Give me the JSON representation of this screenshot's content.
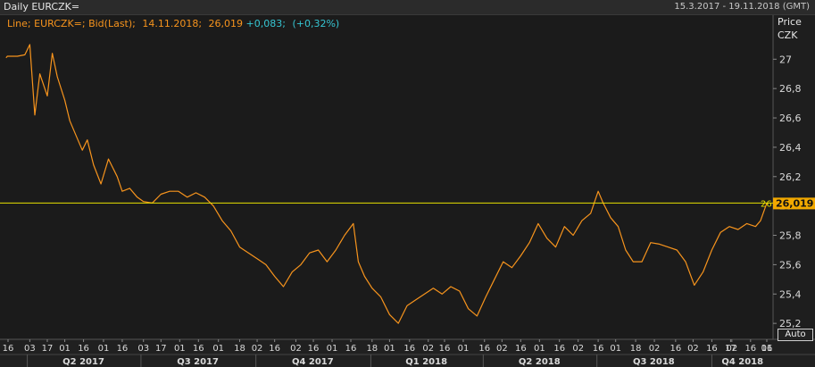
{
  "header": {
    "title": "Daily EURCZK=",
    "date_range": "15.3.2017 - 19.11.2018 (GMT)"
  },
  "legend": {
    "prefix": "Line; EURCZK=; Bid(Last);",
    "date": "14.11.2018;",
    "last_value": "26,019",
    "change": "+0,083;",
    "change_pct": "(+0,32%)"
  },
  "axis": {
    "price_label": "Price",
    "currency_label": "CZK",
    "auto_label": "Auto",
    "last_price_tag": "26,019",
    "line_end_label": "26"
  },
  "colors": {
    "background": "#1b1b1b",
    "series": "#f7941d",
    "reference_line": "#e8e000",
    "legend_change": "#36c6d3",
    "price_tag": "#f2a900"
  },
  "chart_data": {
    "type": "line",
    "series": [
      {
        "name": "EURCZK=",
        "x": [
          "2017-03-15",
          "2017-03-16",
          "2017-03-24",
          "2017-03-30",
          "2017-04-03",
          "2017-04-07",
          "2017-04-11",
          "2017-04-17",
          "2017-04-21",
          "2017-04-25",
          "2017-05-01",
          "2017-05-05",
          "2017-05-10",
          "2017-05-15",
          "2017-05-19",
          "2017-05-24",
          "2017-05-30",
          "2017-06-05",
          "2017-06-12",
          "2017-06-16",
          "2017-06-22",
          "2017-06-28",
          "2017-07-03",
          "2017-07-10",
          "2017-07-17",
          "2017-07-24",
          "2017-07-31",
          "2017-08-07",
          "2017-08-14",
          "2017-08-21",
          "2017-08-28",
          "2017-09-04",
          "2017-09-11",
          "2017-09-18",
          "2017-09-25",
          "2017-10-02",
          "2017-10-09",
          "2017-10-16",
          "2017-10-23",
          "2017-10-30",
          "2017-11-06",
          "2017-11-13",
          "2017-11-20",
          "2017-11-27",
          "2017-12-04",
          "2017-12-11",
          "2017-12-18",
          "2017-12-22",
          "2017-12-27",
          "2018-01-02",
          "2018-01-09",
          "2018-01-16",
          "2018-01-23",
          "2018-01-30",
          "2018-02-06",
          "2018-02-13",
          "2018-02-20",
          "2018-02-27",
          "2018-03-06",
          "2018-03-13",
          "2018-03-20",
          "2018-03-27",
          "2018-04-03",
          "2018-04-10",
          "2018-04-17",
          "2018-04-24",
          "2018-05-01",
          "2018-05-08",
          "2018-05-15",
          "2018-05-22",
          "2018-05-29",
          "2018-06-05",
          "2018-06-12",
          "2018-06-19",
          "2018-06-26",
          "2018-07-02",
          "2018-07-06",
          "2018-07-12",
          "2018-07-18",
          "2018-07-24",
          "2018-07-30",
          "2018-08-06",
          "2018-08-13",
          "2018-08-20",
          "2018-08-27",
          "2018-09-03",
          "2018-09-10",
          "2018-09-17",
          "2018-09-24",
          "2018-10-01",
          "2018-10-08",
          "2018-10-15",
          "2018-10-22",
          "2018-10-29",
          "2018-11-05",
          "2018-11-09",
          "2018-11-14"
        ],
        "values": [
          27.01,
          27.02,
          27.02,
          27.03,
          27.1,
          26.62,
          26.9,
          26.75,
          27.04,
          26.88,
          26.72,
          26.58,
          26.48,
          26.38,
          26.45,
          26.28,
          26.15,
          26.32,
          26.2,
          26.1,
          26.12,
          26.06,
          26.03,
          26.02,
          26.08,
          26.1,
          26.1,
          26.06,
          26.09,
          26.06,
          26.0,
          25.9,
          25.83,
          25.72,
          25.68,
          25.64,
          25.6,
          25.52,
          25.45,
          25.55,
          25.6,
          25.68,
          25.7,
          25.62,
          25.7,
          25.8,
          25.88,
          25.62,
          25.52,
          25.44,
          25.38,
          25.26,
          25.2,
          25.32,
          25.36,
          25.4,
          25.44,
          25.4,
          25.45,
          25.42,
          25.3,
          25.25,
          25.38,
          25.5,
          25.62,
          25.58,
          25.66,
          25.75,
          25.88,
          25.78,
          25.72,
          25.86,
          25.8,
          25.9,
          25.95,
          26.1,
          26.02,
          25.92,
          25.86,
          25.7,
          25.62,
          25.62,
          25.75,
          25.74,
          25.72,
          25.7,
          25.62,
          25.46,
          25.55,
          25.7,
          25.82,
          25.86,
          25.84,
          25.88,
          25.86,
          25.9,
          26.02
        ]
      }
    ],
    "reference_line": 26.02,
    "ylim": [
      25.14,
      27.16
    ],
    "y_ticks": [
      "27",
      "26,8",
      "26,6",
      "26,4",
      "26,2",
      "26",
      "25,8",
      "25,6",
      "25,4",
      "25,2"
    ],
    "y_tick_values": [
      27.0,
      26.8,
      26.6,
      26.4,
      26.2,
      26.0,
      25.8,
      25.6,
      25.4,
      25.2
    ],
    "x_range": [
      "2017-03-13",
      "2018-11-19"
    ],
    "x_ticks": [
      "16",
      "03",
      "17",
      "01",
      "16",
      "01",
      "16",
      "03",
      "17",
      "01",
      "16",
      "01",
      "18",
      "02",
      "16",
      "02",
      "16",
      "01",
      "16",
      "18",
      "01",
      "16",
      "02",
      "16",
      "01",
      "16",
      "02",
      "16",
      "01",
      "16",
      "02",
      "16",
      "01",
      "18",
      "02",
      "16",
      "02",
      "16",
      "17",
      "02",
      "16",
      "01",
      "16"
    ],
    "x_tick_dates": [
      "2017-03-16",
      "2017-04-03",
      "2017-04-17",
      "2017-05-01",
      "2017-05-16",
      "2017-06-01",
      "2017-06-16",
      "2017-07-03",
      "2017-07-17",
      "2017-08-01",
      "2017-08-16",
      "2017-09-01",
      "2017-09-18",
      "2017-10-02",
      "2017-10-16",
      "2017-11-02",
      "2017-11-16",
      "2017-12-01",
      "2017-12-16",
      "2018-01-02",
      "2018-01-16",
      "2018-02-01",
      "2018-02-16",
      "2018-03-01",
      "2018-03-16",
      "2018-04-02",
      "2018-04-16",
      "2018-05-01",
      "2018-05-16",
      "2018-06-01",
      "2018-06-16",
      "2018-07-02",
      "2018-07-16",
      "2018-08-01",
      "2018-08-16",
      "2018-09-02",
      "2018-09-16",
      "2018-10-01",
      "2018-10-16",
      "2018-10-17",
      "2018-11-01",
      "2018-11-16",
      "2018-11-19"
    ],
    "quarters": [
      {
        "label": "Q2 2017",
        "start": "2017-04-01",
        "end": "2017-06-30"
      },
      {
        "label": "Q3 2017",
        "start": "2017-07-01",
        "end": "2017-09-30"
      },
      {
        "label": "Q4 2017",
        "start": "2017-10-01",
        "end": "2017-12-31"
      },
      {
        "label": "Q1 2018",
        "start": "2018-01-01",
        "end": "2018-03-31"
      },
      {
        "label": "Q2 2018",
        "start": "2018-04-01",
        "end": "2018-06-30"
      },
      {
        "label": "Q3 2018",
        "start": "2018-07-01",
        "end": "2018-09-30"
      },
      {
        "label": "Q4 2018",
        "start": "2018-10-01",
        "end": "2018-12-31"
      }
    ],
    "grid": false
  }
}
